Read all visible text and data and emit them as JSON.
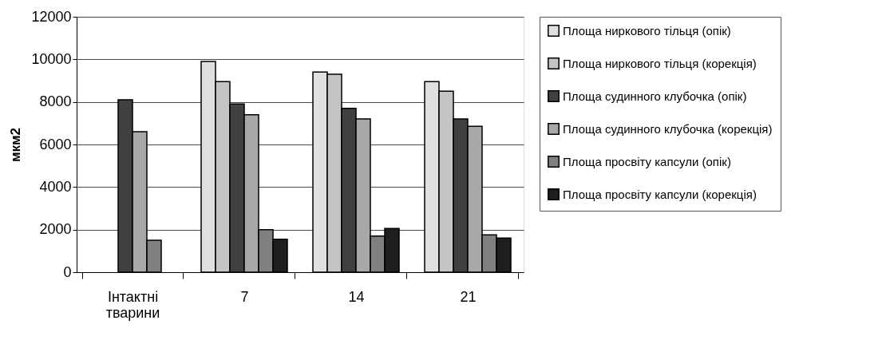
{
  "chart_data": {
    "type": "bar",
    "ylabel": "мкм2",
    "categories": [
      "Інтактні тварини",
      "7",
      "14",
      "21"
    ],
    "series": [
      {
        "name": "Площа ниркового тільця (опік)",
        "color": "#e0e0e0",
        "values": [
          null,
          9900,
          9400,
          8950
        ]
      },
      {
        "name": "Площа ниркового тільця (корекція)",
        "color": "#c4c4c4",
        "values": [
          null,
          8950,
          9300,
          8500
        ]
      },
      {
        "name": "Площа судинного клубочка (опік)",
        "color": "#404040",
        "values": [
          8100,
          7900,
          7700,
          7200
        ]
      },
      {
        "name": "Площа судинного клубочка (корекція)",
        "color": "#a8a8a8",
        "values": [
          6600,
          7400,
          7200,
          6850
        ]
      },
      {
        "name": "Площа просвіту капсули (опік)",
        "color": "#808080",
        "values": [
          1500,
          2000,
          1700,
          1750
        ]
      },
      {
        "name": "Площа просвіту капсули (корекція)",
        "color": "#1e1e1e",
        "values": [
          null,
          1550,
          2050,
          1600
        ]
      }
    ],
    "ylim": [
      0,
      12000
    ],
    "yticks": [
      0,
      2000,
      4000,
      6000,
      8000,
      10000,
      12000
    ],
    "grid": "y",
    "legend": "right"
  }
}
